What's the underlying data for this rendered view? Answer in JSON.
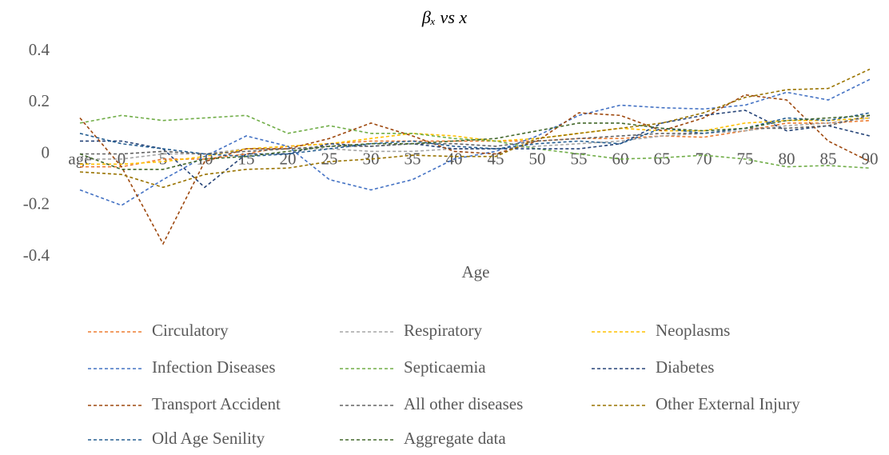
{
  "chart_data": {
    "type": "line",
    "title": "βₓ vs x",
    "x_label": "Age",
    "categories": [
      "age",
      "0",
      "5",
      "10",
      "15",
      "20",
      "25",
      "30",
      "35",
      "40",
      "45",
      "50",
      "55",
      "60",
      "65",
      "70",
      "75",
      "80",
      "85",
      "90"
    ],
    "ylim": [
      -0.4,
      0.4
    ],
    "yticks": [
      -0.4,
      -0.2,
      0,
      0.2,
      0.4
    ],
    "grid": false,
    "legend": "bottom",
    "series": [
      {
        "name": "Circulatory",
        "color": "#ED7D31",
        "values": [
          -0.05,
          -0.05,
          -0.02,
          -0.02,
          0.0,
          0.03,
          0.04,
          0.05,
          0.05,
          0.05,
          0.05,
          0.05,
          0.06,
          0.06,
          0.07,
          0.065,
          0.09,
          0.12,
          0.12,
          0.13
        ]
      },
      {
        "name": "Respiratory",
        "color": "#A5A5A5",
        "values": [
          -0.02,
          -0.02,
          0.0,
          0.0,
          0.02,
          0.02,
          0.02,
          0.01,
          0.01,
          0.02,
          0.02,
          0.03,
          0.04,
          0.05,
          0.07,
          0.08,
          0.09,
          0.11,
          0.12,
          0.14
        ]
      },
      {
        "name": "Neoplasms",
        "color": "#FFC000",
        "values": [
          -0.04,
          -0.04,
          -0.03,
          -0.01,
          0.02,
          0.03,
          0.04,
          0.06,
          0.08,
          0.07,
          0.05,
          0.06,
          0.08,
          0.1,
          0.09,
          0.09,
          0.12,
          0.13,
          0.13,
          0.14
        ]
      },
      {
        "name": "Infection Diseases",
        "color": "#4472C4",
        "values": [
          -0.14,
          -0.2,
          -0.1,
          -0.01,
          0.07,
          0.03,
          -0.1,
          -0.14,
          -0.1,
          -0.02,
          0.01,
          0.07,
          0.15,
          0.19,
          0.18,
          0.175,
          0.19,
          0.24,
          0.21,
          0.29
        ]
      },
      {
        "name": "Septicaemia",
        "color": "#70AD47",
        "values": [
          0.12,
          0.15,
          0.13,
          0.14,
          0.15,
          0.08,
          0.11,
          0.08,
          0.08,
          0.06,
          0.05,
          0.02,
          0.0,
          -0.02,
          -0.015,
          -0.005,
          -0.02,
          -0.05,
          -0.045,
          -0.055
        ]
      },
      {
        "name": "Diabetes",
        "color": "#264478",
        "values": [
          0.05,
          0.05,
          0.02,
          -0.13,
          0.0,
          0.0,
          0.04,
          0.03,
          0.04,
          0.02,
          0.02,
          0.02,
          0.02,
          0.04,
          0.12,
          0.15,
          0.17,
          0.09,
          0.11,
          0.07
        ]
      },
      {
        "name": "Transport Accident",
        "color": "#9E480E",
        "values": [
          0.14,
          -0.05,
          -0.35,
          -0.03,
          0.02,
          0.02,
          0.06,
          0.12,
          0.07,
          0.01,
          0.0,
          0.05,
          0.16,
          0.15,
          0.09,
          0.14,
          0.23,
          0.21,
          0.05,
          -0.03
        ]
      },
      {
        "name": "All other diseases",
        "color": "#636363",
        "values": [
          0.0,
          0.0,
          0.01,
          0.0,
          0.01,
          0.02,
          0.03,
          0.03,
          0.04,
          0.04,
          0.03,
          0.05,
          0.06,
          0.07,
          0.08,
          0.08,
          0.1,
          0.1,
          0.11,
          0.15
        ]
      },
      {
        "name": "Other External Injury",
        "color": "#997300",
        "values": [
          -0.07,
          -0.08,
          -0.13,
          -0.08,
          -0.06,
          -0.055,
          -0.03,
          -0.02,
          -0.005,
          -0.01,
          -0.01,
          0.06,
          0.08,
          0.1,
          0.12,
          0.16,
          0.22,
          0.25,
          0.255,
          0.33
        ]
      },
      {
        "name": "Old Age Senility",
        "color": "#255E91",
        "values": [
          0.08,
          0.04,
          0.02,
          0.0,
          -0.01,
          0.0,
          0.02,
          0.04,
          0.05,
          0.03,
          0.02,
          0.04,
          0.05,
          0.04,
          0.1,
          0.08,
          0.1,
          0.14,
          0.13,
          0.16
        ]
      },
      {
        "name": "Aggregate data",
        "color": "#43682B",
        "values": [
          0.0,
          -0.06,
          -0.06,
          -0.02,
          -0.01,
          0.01,
          0.03,
          0.04,
          0.04,
          0.05,
          0.06,
          0.09,
          0.12,
          0.12,
          0.1,
          0.09,
          0.1,
          0.13,
          0.14,
          0.15
        ]
      }
    ]
  }
}
